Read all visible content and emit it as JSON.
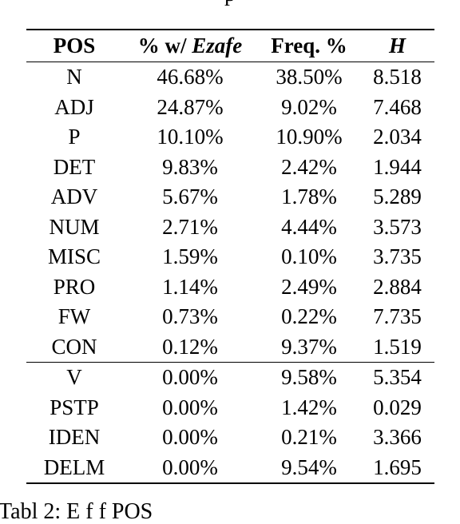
{
  "header_fragment": "p",
  "caption_fragment": "Tabl  2: E                    f    f      POS",
  "table": {
    "columns": [
      {
        "prefix": "POS",
        "emph": ""
      },
      {
        "prefix": "% w/ ",
        "emph": "Ezafe"
      },
      {
        "prefix": "Freq. %",
        "emph": ""
      },
      {
        "prefix": "",
        "emph": "H"
      }
    ],
    "group1": [
      {
        "pos": "N",
        "ezafe": "46.68%",
        "freq": "38.50%",
        "h": "8.518"
      },
      {
        "pos": "ADJ",
        "ezafe": "24.87%",
        "freq": "9.02%",
        "h": "7.468"
      },
      {
        "pos": "P",
        "ezafe": "10.10%",
        "freq": "10.90%",
        "h": "2.034"
      },
      {
        "pos": "DET",
        "ezafe": "9.83%",
        "freq": "2.42%",
        "h": "1.944"
      },
      {
        "pos": "ADV",
        "ezafe": "5.67%",
        "freq": "1.78%",
        "h": "5.289"
      },
      {
        "pos": "NUM",
        "ezafe": "2.71%",
        "freq": "4.44%",
        "h": "3.573"
      },
      {
        "pos": "MISC",
        "ezafe": "1.59%",
        "freq": "0.10%",
        "h": "3.735"
      },
      {
        "pos": "PRO",
        "ezafe": "1.14%",
        "freq": "2.49%",
        "h": "2.884"
      },
      {
        "pos": "FW",
        "ezafe": "0.73%",
        "freq": "0.22%",
        "h": "7.735"
      },
      {
        "pos": "CON",
        "ezafe": "0.12%",
        "freq": "9.37%",
        "h": "1.519"
      }
    ],
    "group2": [
      {
        "pos": "V",
        "ezafe": "0.00%",
        "freq": "9.58%",
        "h": "5.354"
      },
      {
        "pos": "PSTP",
        "ezafe": "0.00%",
        "freq": "1.42%",
        "h": "0.029"
      },
      {
        "pos": "IDEN",
        "ezafe": "0.00%",
        "freq": "0.21%",
        "h": "3.366"
      },
      {
        "pos": "DELM",
        "ezafe": "0.00%",
        "freq": "9.54%",
        "h": "1.695"
      }
    ]
  }
}
